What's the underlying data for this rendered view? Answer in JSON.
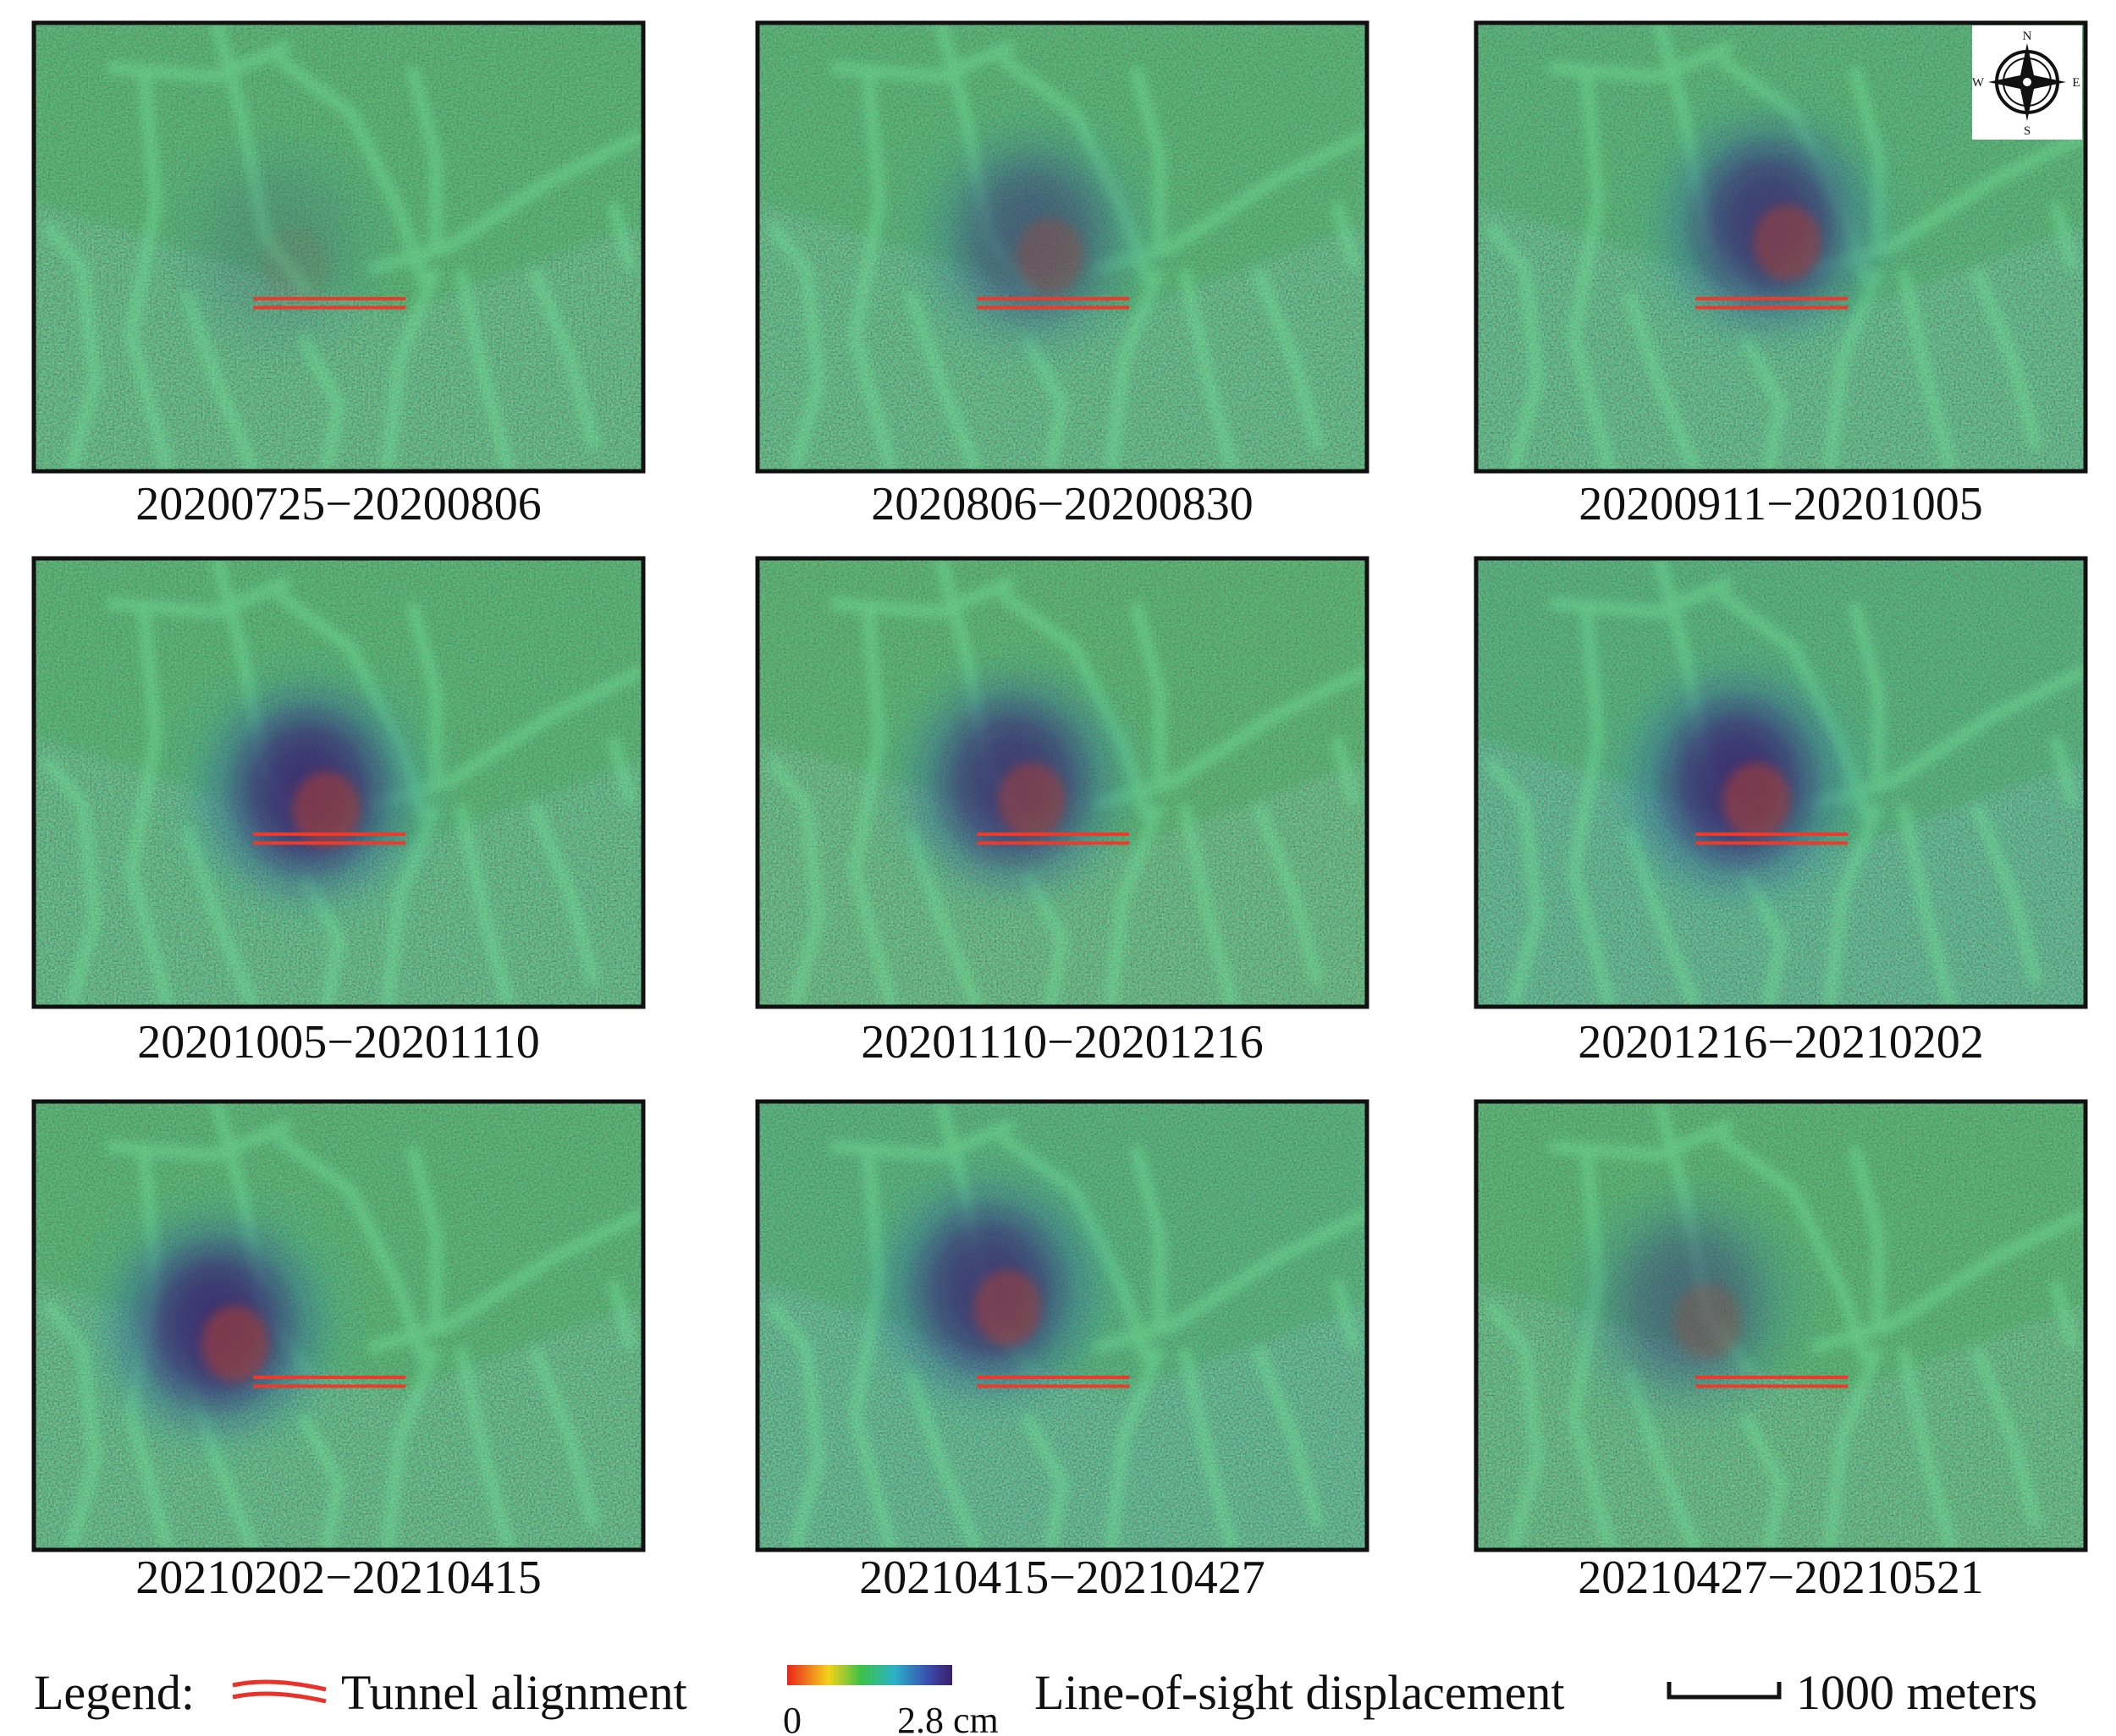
{
  "panels": [
    {
      "caption": "20200725−20200806"
    },
    {
      "caption": "2020806−20200830"
    },
    {
      "caption": "20200911−20201005"
    },
    {
      "caption": "20201005−20201110"
    },
    {
      "caption": "20201110−20201216"
    },
    {
      "caption": "20201216−20210202"
    },
    {
      "caption": "20210202−20210415"
    },
    {
      "caption": "20210415−20210427"
    },
    {
      "caption": "20210427−20210521"
    }
  ],
  "compass": {
    "n": "N",
    "s": "S",
    "w": "W",
    "e": "E"
  },
  "legend": {
    "title": "Legend:",
    "tunnel": "Tunnel alignment",
    "colorbar_min": "0",
    "colorbar_max": "2.8 cm",
    "colorbar_label": "Line-of-sight displacement",
    "scale": "1000 meters"
  }
}
